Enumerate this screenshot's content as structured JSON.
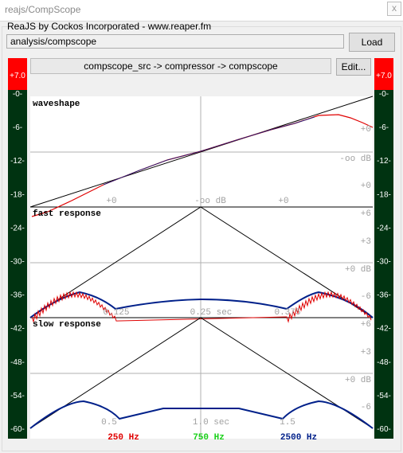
{
  "window": {
    "title": "reajs/CompScope",
    "close_glyph": "x"
  },
  "group": {
    "label": "ReaJS by Cockos Incorporated - www.reaper.fm"
  },
  "path": {
    "value": "analysis/compscope"
  },
  "load": {
    "label": "Load"
  },
  "chain": {
    "text": "compscope_src -> compressor -> compscope"
  },
  "edit": {
    "label": "Edit..."
  },
  "meters": {
    "peak_left": "+7.0",
    "peak_right": "+7.0",
    "scale": [
      "-0-",
      "-6-",
      "-12-",
      "-18-",
      "-24-",
      "-30-",
      "-36-",
      "-42-",
      "-48-",
      "-54-",
      "-60-"
    ]
  },
  "panels": {
    "waveshape": {
      "title": "waveshape",
      "labels": {
        "right_top": "+0",
        "center": "-oo dB",
        "right_bottom": "+0",
        "bottom_left": "+0",
        "bottom_center": "-oo dB",
        "bottom_right": "+0"
      }
    },
    "fast": {
      "title": "fast response",
      "labels": {
        "r1": "+6",
        "r2": "+3",
        "r3": "+0 dB",
        "r4": "-6",
        "t1": "0.125",
        "t2": "0.25 sec",
        "t3": "0.375"
      }
    },
    "slow": {
      "title": "slow response",
      "labels": {
        "r1": "+6",
        "r2": "+3",
        "r3": "+0 dB",
        "r4": "-6",
        "t1": "0.5",
        "t2": "1.0 sec",
        "t3": "1.5"
      }
    }
  },
  "legend": {
    "red": "250 Hz",
    "green": "750 Hz",
    "blue": "2500 Hz"
  },
  "colors": {
    "red": "#e00000",
    "green": "#18d018",
    "blue": "#00208a",
    "peak": "#ff0000",
    "meter": "#003311"
  }
}
